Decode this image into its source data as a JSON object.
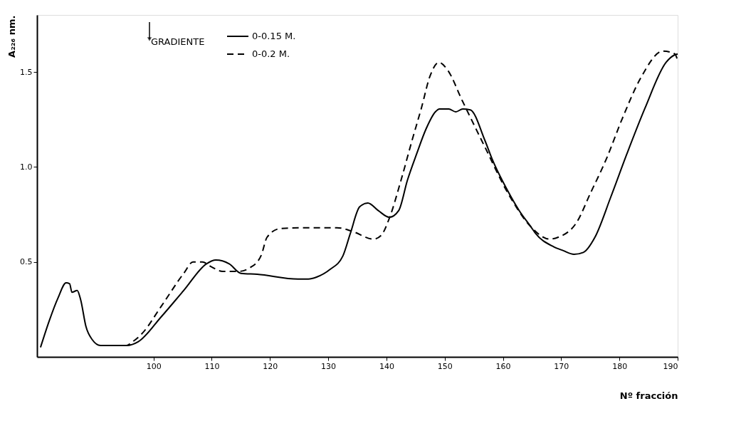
{
  "chart_data": {
    "type": "line",
    "xlabel": "Nº fracción",
    "ylabel": "A₂₂₆ nm.",
    "legend_title": "GRADIENTE",
    "xlim": [
      80,
      190
    ],
    "ylim": [
      0,
      1.8
    ],
    "xticks": [
      100,
      110,
      120,
      130,
      140,
      150,
      160,
      170,
      180,
      190
    ],
    "yticks": [
      0.5,
      {
        "value": 1.0,
        "label": "1.0"
      },
      1.5
    ],
    "grid": false,
    "legend": "top left",
    "marker": "none",
    "series": [
      {
        "name": "0-0.15 M.",
        "color": "#000000",
        "line_style": "solid",
        "x": [
          80.6,
          82.1,
          83.6,
          85.0,
          85.6,
          86.0,
          86.9,
          87.5,
          88.4,
          89.5,
          90.9,
          93.1,
          95.4,
          97.4,
          101.3,
          105.2,
          109.1,
          110.7,
          113.0,
          115.0,
          117.8,
          124.8,
          126.6,
          128.0,
          130.3,
          132.5,
          133.8,
          135.4,
          136.8,
          138.6,
          140.5,
          142.1,
          143.6,
          145.2,
          146.8,
          148.4,
          149.1,
          150.7,
          151.9,
          153.1,
          154.4,
          156.9,
          158.1,
          160.9,
          162.8,
          164.8,
          165.6,
          168.7,
          170.3,
          172.2,
          173.8,
          175.8,
          178.5,
          181.3,
          184.4,
          188.0,
          189.5,
          190.0
        ],
        "values": [
          0.05,
          0.19,
          0.31,
          0.39,
          0.385,
          0.34,
          0.35,
          0.3,
          0.16,
          0.09,
          0.06,
          0.06,
          0.06,
          0.08,
          0.21,
          0.35,
          0.49,
          0.51,
          0.49,
          0.44,
          0.435,
          0.41,
          0.41,
          0.42,
          0.46,
          0.53,
          0.65,
          0.79,
          0.81,
          0.77,
          0.735,
          0.77,
          0.93,
          1.07,
          1.2,
          1.29,
          1.305,
          1.305,
          1.29,
          1.305,
          1.3,
          1.14,
          1.045,
          0.87,
          0.77,
          0.685,
          0.65,
          0.58,
          0.56,
          0.54,
          0.55,
          0.63,
          0.84,
          1.07,
          1.31,
          1.55,
          1.59,
          1.595
        ]
      },
      {
        "name": "0-0.2 M.",
        "color": "#000000",
        "line_style": "dashed",
        "x": [
          93.1,
          95.4,
          96.2,
          98.1,
          101.3,
          105.2,
          106.8,
          108.4,
          109.9,
          111.9,
          114.6,
          116.6,
          118.5,
          119.5,
          121.7,
          125.6,
          131.5,
          134.2,
          137.8,
          139.1,
          140.5,
          142.5,
          144.4,
          146.0,
          147.5,
          149.0,
          150.5,
          153.0,
          156.9,
          160.9,
          164.8,
          168.0,
          169.5,
          172.7,
          175.0,
          177.8,
          180.5,
          183.6,
          187.5,
          189.5,
          190.0
        ],
        "values": [
          0.06,
          0.06,
          0.075,
          0.125,
          0.265,
          0.44,
          0.5,
          0.5,
          0.475,
          0.45,
          0.45,
          0.47,
          0.535,
          0.63,
          0.675,
          0.68,
          0.68,
          0.66,
          0.62,
          0.64,
          0.73,
          0.93,
          1.14,
          1.31,
          1.48,
          1.55,
          1.51,
          1.35,
          1.105,
          0.86,
          0.685,
          0.62,
          0.63,
          0.71,
          0.86,
          1.045,
          1.255,
          1.465,
          1.61,
          1.595,
          1.56
        ]
      }
    ]
  }
}
